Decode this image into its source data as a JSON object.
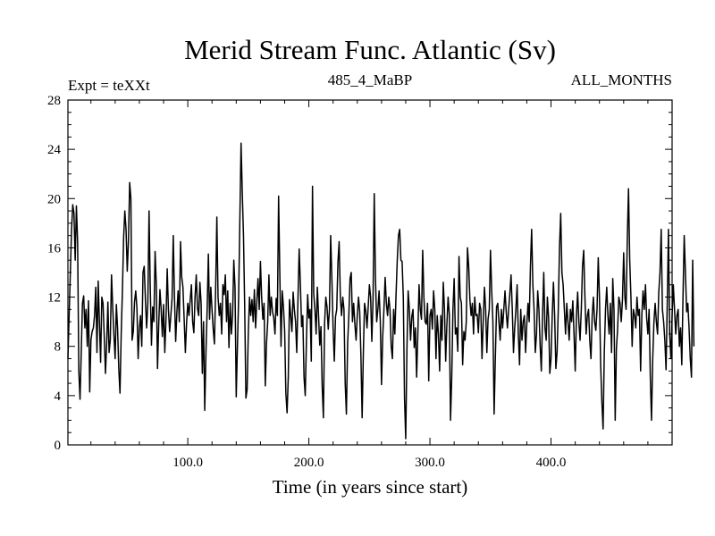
{
  "chart_data": {
    "type": "line",
    "title": "Merid Stream Func. Atlantic (Sv)",
    "subtitle_left": "Expt = teXXt",
    "subtitle_center": "485_4_MaBP",
    "subtitle_right": "ALL_MONTHS",
    "xlabel": "Time (in years since start)",
    "ylabel": "",
    "xlim": [
      1,
      500
    ],
    "ylim": [
      0,
      28
    ],
    "x_ticks": [
      100,
      200,
      300,
      400
    ],
    "x_tick_labels": [
      "100.0",
      "200.0",
      "300.0",
      "400.0"
    ],
    "y_ticks": [
      0,
      4,
      8,
      12,
      16,
      20,
      24,
      28
    ],
    "y_tick_labels": [
      "0",
      "4",
      "8",
      "12",
      "16",
      "20",
      "24",
      "28"
    ],
    "grid": false,
    "line_color": "#000000",
    "series": [
      {
        "name": "Merid Stream Func. Atlantic",
        "x_start": 1,
        "x_step": 1,
        "values": [
          7.0,
          10.5,
          14.0,
          17.5,
          19.5,
          18.8,
          15.0,
          19.4,
          16.5,
          6.0,
          3.7,
          7.5,
          11.5,
          12.1,
          9.5,
          11.0,
          8.0,
          11.7,
          4.3,
          8.5,
          9.2,
          9.5,
          10.5,
          12.8,
          7.5,
          13.3,
          10.0,
          6.7,
          12.0,
          11.5,
          8.8,
          5.8,
          8.2,
          11.6,
          7.5,
          8.5,
          13.8,
          11.2,
          8.9,
          7.0,
          11.4,
          9.5,
          6.2,
          4.2,
          9.0,
          12.5,
          16.8,
          19.0,
          17.5,
          14.1,
          16.6,
          21.3,
          20.0,
          8.5,
          9.2,
          11.6,
          12.5,
          11.1,
          7.0,
          9.5,
          10.5,
          8.0,
          14.0,
          14.5,
          11.8,
          9.5,
          11.5,
          19.0,
          12.8,
          8.1,
          11.2,
          10.0,
          15.7,
          13.0,
          6.2,
          9.8,
          12.6,
          11.0,
          8.8,
          11.4,
          7.5,
          10.2,
          14.3,
          11.0,
          9.2,
          10.5,
          11.9,
          17.0,
          12.0,
          8.4,
          10.8,
          12.5,
          10.0,
          16.5,
          13.6,
          12.8,
          10.2,
          7.5,
          9.9,
          11.5,
          10.5,
          11.8,
          13.0,
          10.0,
          9.1,
          12.0,
          13.8,
          11.1,
          10.5,
          13.2,
          11.5,
          5.8,
          10.0,
          2.8,
          7.5,
          11.0,
          15.5,
          10.2,
          12.8,
          11.0,
          9.4,
          8.2,
          12.6,
          18.5,
          12.0,
          10.5,
          11.5,
          9.0,
          13.0,
          12.2,
          13.8,
          10.0,
          12.5,
          7.9,
          11.5,
          9.0,
          10.5,
          15.0,
          12.8,
          3.9,
          8.0,
          12.0,
          18.3,
          24.5,
          20.5,
          17.0,
          11.2,
          3.8,
          4.5,
          9.2,
          12.0,
          10.5,
          11.8,
          10.0,
          12.6,
          9.5,
          11.6,
          13.5,
          11.0,
          14.9,
          12.0,
          10.2,
          11.5,
          4.8,
          8.2,
          10.0,
          13.8,
          10.5,
          12.0,
          10.8,
          10.3,
          9.0,
          11.9,
          10.5,
          20.2,
          14.0,
          8.0,
          12.5,
          11.2,
          9.3,
          4.2,
          2.6,
          5.5,
          11.8,
          10.5,
          9.2,
          12.4,
          11.0,
          10.0,
          7.5,
          11.8,
          15.9,
          13.0,
          9.6,
          10.5,
          5.5,
          4.0,
          8.5,
          12.2,
          10.3,
          11.0,
          6.8,
          21.0,
          12.3,
          11.0,
          9.0,
          12.8,
          10.5,
          8.1,
          9.6,
          4.8,
          2.2,
          9.9,
          12.0,
          11.2,
          9.4,
          11.0,
          17.0,
          13.5,
          9.5,
          6.8,
          10.4,
          11.0,
          14.8,
          16.5,
          12.0,
          10.5,
          12.0,
          11.0,
          5.0,
          2.5,
          8.2,
          10.5,
          13.5,
          14.0,
          10.0,
          11.5,
          9.8,
          8.5,
          10.5,
          12.0,
          10.8,
          7.2,
          2.2,
          7.5,
          11.5,
          10.9,
          9.5,
          11.2,
          13.0,
          12.0,
          8.4,
          11.8,
          20.4,
          13.5,
          10.0,
          11.0,
          12.5,
          10.0,
          4.9,
          8.8,
          11.0,
          13.6,
          11.5,
          10.5,
          12.0,
          11.0,
          8.0,
          7.0,
          11.0,
          9.0,
          12.2,
          15.0,
          17.0,
          17.5,
          15.0,
          14.9,
          12.0,
          3.8,
          0.5,
          7.8,
          12.5,
          11.0,
          8.5,
          10.4,
          11.0,
          7.9,
          9.5,
          5.5,
          9.0,
          13.0,
          11.0,
          10.2,
          15.8,
          12.0,
          10.0,
          9.8,
          11.5,
          5.2,
          10.5,
          11.0,
          9.4,
          12.5,
          11.0,
          7.0,
          10.5,
          9.0,
          6.0,
          10.5,
          8.5,
          13.2,
          11.0,
          6.8,
          9.8,
          12.0,
          10.6,
          2.0,
          5.5,
          11.0,
          13.5,
          9.0,
          9.5,
          7.6,
          15.3,
          12.0,
          11.5,
          6.5,
          9.2,
          8.5,
          10.0,
          16.0,
          14.5,
          11.8,
          10.5,
          11.5,
          9.0,
          12.0,
          10.5,
          10.6,
          9.1,
          11.5,
          11.0,
          7.0,
          10.0,
          12.8,
          11.0,
          7.5,
          10.2,
          11.0,
          15.8,
          12.5,
          10.0,
          2.5,
          7.0,
          11.2,
          11.5,
          10.0,
          8.5,
          11.0,
          9.5,
          11.0,
          12.5,
          10.8,
          9.5,
          11.0,
          12.3,
          13.8,
          11.0,
          7.5,
          9.5,
          11.0,
          13.0,
          9.0,
          6.5,
          11.0,
          8.5,
          10.0,
          10.5,
          7.5,
          9.8,
          11.5,
          10.0,
          14.5,
          17.5,
          13.0,
          11.0,
          7.5,
          9.0,
          12.5,
          11.0,
          8.1,
          6.0,
          10.5,
          14.0,
          9.5,
          8.5,
          12.0,
          10.3,
          5.8,
          7.0,
          10.5,
          13.2,
          10.5,
          6.2,
          7.5,
          11.0,
          16.0,
          18.8,
          14.0,
          13.0,
          11.0,
          9.0,
          11.5,
          10.0,
          8.5,
          11.0,
          10.0,
          11.7,
          9.0,
          6.0,
          10.5,
          12.4,
          10.0,
          8.5,
          11.0,
          14.5,
          15.8,
          12.0,
          9.0,
          10.5,
          11.0,
          8.5,
          7.0,
          10.5,
          12.0,
          10.0,
          9.3,
          11.0,
          15.2,
          12.0,
          6.5,
          3.5,
          1.3,
          7.5,
          11.0,
          12.8,
          10.5,
          9.0,
          11.5,
          7.5,
          13.5,
          11.0,
          2.0,
          7.8,
          9.4,
          12.0,
          11.5,
          10.0,
          11.8,
          15.6,
          12.0,
          11.0,
          16.8,
          20.8,
          15.0,
          12.0,
          8.0,
          11.0,
          10.5,
          9.5,
          12.0,
          10.5,
          11.0,
          6.0,
          10.5,
          12.5,
          11.0,
          13.0,
          10.3,
          9.0,
          11.0,
          5.5,
          2.0,
          7.0,
          10.0,
          11.5,
          10.0,
          9.0,
          12.4,
          14.0,
          17.5,
          11.0,
          10.0,
          8.5,
          6.1,
          11.5,
          17.5,
          9.0,
          7.0,
          10.5,
          13.0,
          11.0,
          9.0,
          10.5,
          11.0,
          8.0,
          9.5,
          6.5,
          12.0,
          17.0,
          14.0,
          10.8,
          11.5,
          9.5,
          7.0,
          5.5,
          15.0,
          8.0
        ]
      }
    ]
  }
}
